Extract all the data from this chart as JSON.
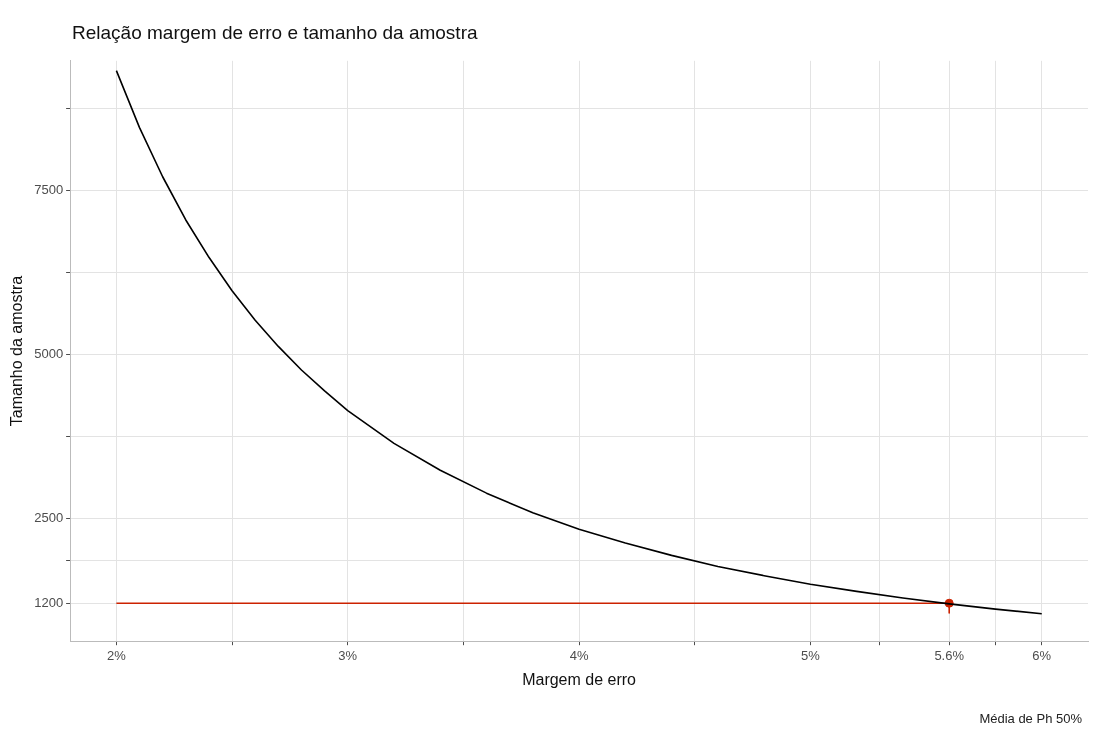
{
  "chart_data": {
    "type": "line",
    "title": "Relação margem de erro e tamanho da amostra",
    "xlabel": "Margem de erro",
    "ylabel": "Tamanho da amostra",
    "xlim": [
      1.8,
      6.2
    ],
    "ylim": [
      620,
      9480
    ],
    "xticks": [
      {
        "value": 2,
        "label": "2%"
      },
      {
        "value": 2.5,
        "label": null
      },
      {
        "value": 3,
        "label": "3%"
      },
      {
        "value": 3.5,
        "label": null
      },
      {
        "value": 4,
        "label": "4%"
      },
      {
        "value": 4.5,
        "label": null
      },
      {
        "value": 5,
        "label": "5%"
      },
      {
        "value": 5.3,
        "label": null
      },
      {
        "value": 5.6,
        "label": "5.6%"
      },
      {
        "value": 5.8,
        "label": null
      },
      {
        "value": 6,
        "label": "6%"
      }
    ],
    "yticks": [
      1200,
      {
        "value": 1850,
        "label": null
      },
      2500,
      {
        "value": 3750,
        "label": null
      },
      5000,
      {
        "value": 6250,
        "label": null
      },
      7500,
      {
        "value": 8750,
        "label": null
      }
    ],
    "grid": true,
    "legend": false,
    "line_style": "solid",
    "series": [
      {
        "color": "#000000",
        "marker": "none",
        "x": [
          2,
          2.1,
          2.2,
          2.3,
          2.4,
          2.5,
          2.6,
          2.7,
          2.8,
          2.9,
          3,
          3.2,
          3.4,
          3.6,
          3.8,
          4,
          4.2,
          4.4,
          4.6,
          4.8,
          5,
          5.2,
          5.4,
          5.6,
          5.8,
          6
        ],
        "values": [
          9330,
          8460,
          7710,
          7050,
          6480,
          5970,
          5520,
          5120,
          4760,
          4440,
          4140,
          3640,
          3230,
          2880,
          2580,
          2330,
          2120,
          1930,
          1760,
          1620,
          1490,
          1380,
          1280,
          1190,
          1110,
          1040
        ]
      },
      {
        "color": "#cc2200",
        "marker": "none",
        "x": [
          2,
          5.6,
          5.6
        ],
        "values": [
          1200,
          1200,
          1050
        ]
      },
      {
        "type": "scatter",
        "color": "#cc2200",
        "marker": "circle",
        "x": [
          5.6
        ],
        "values": [
          1200
        ]
      }
    ],
    "annotations": [
      "Média de Ph 50%"
    ]
  }
}
